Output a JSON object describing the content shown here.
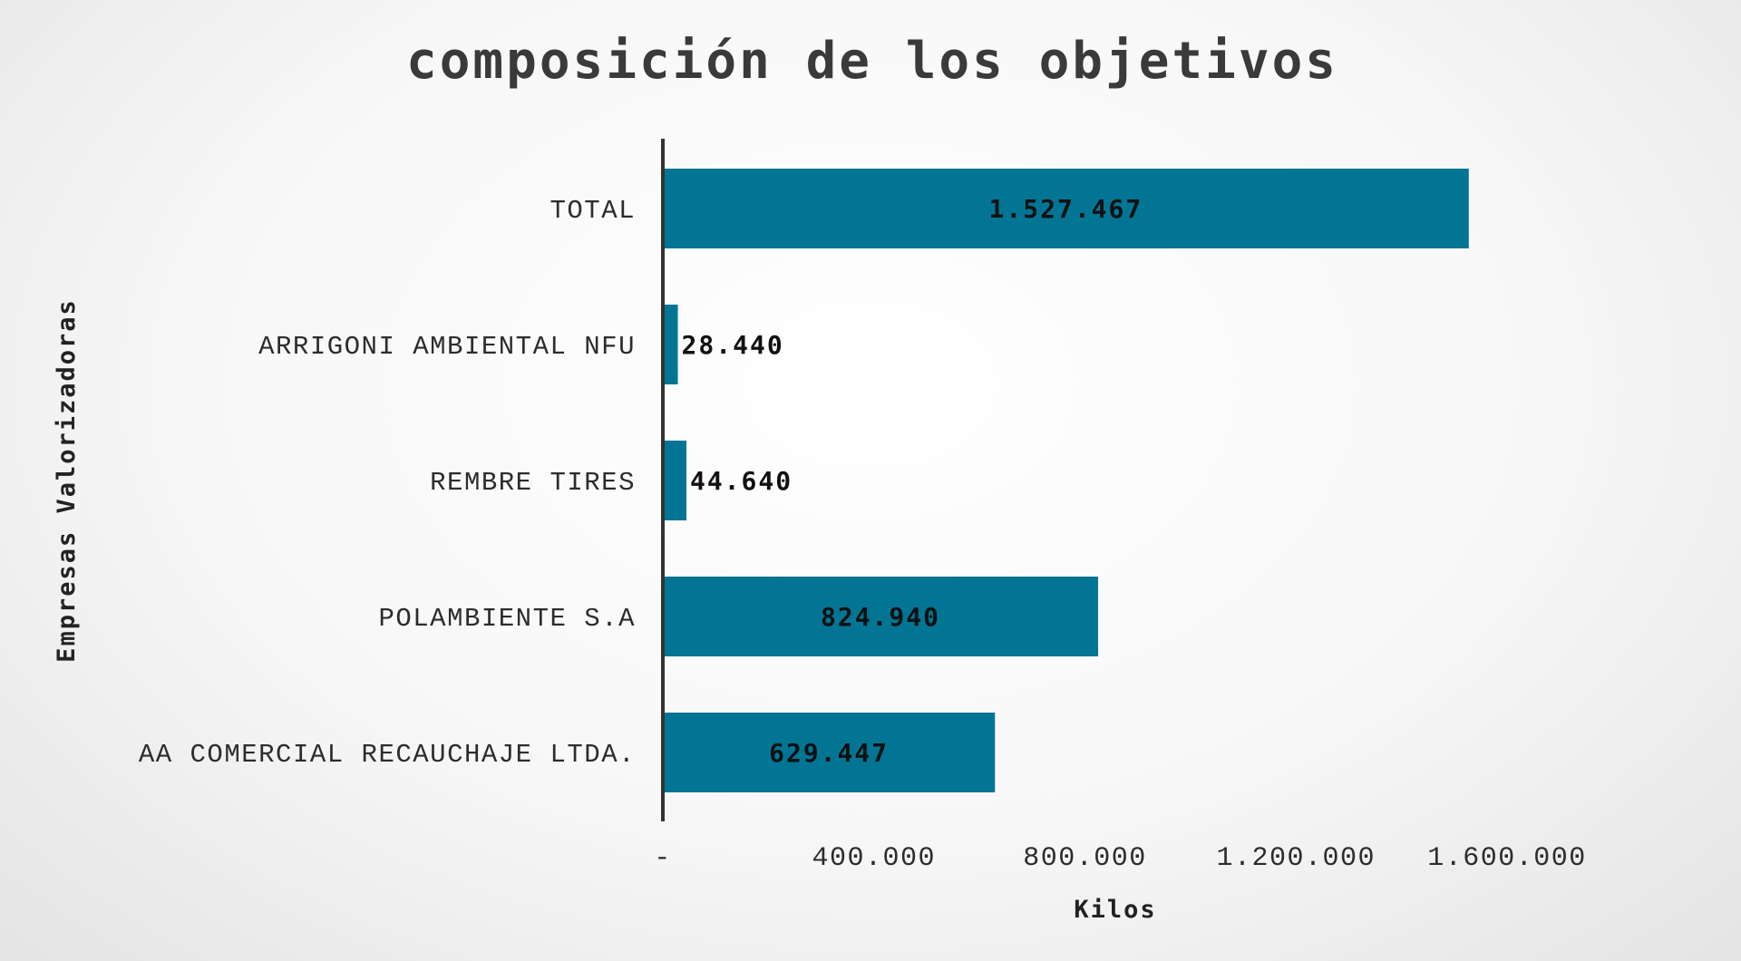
{
  "chart_data": {
    "type": "bar",
    "orientation": "horizontal",
    "title": "composición de los objetivos",
    "xlabel": "Kilos",
    "ylabel": "Empresas Valorizadoras",
    "categories": [
      "TOTAL",
      "ARRIGONI AMBIENTAL NFU",
      "REMBRE TIRES",
      "POLAMBIENTE S.A",
      "AA COMERCIAL RECAUCHAJE LTDA."
    ],
    "values": [
      1527467,
      28440,
      44640,
      824940,
      629447
    ],
    "data_labels": [
      "1.527.467",
      "28.440",
      "44.640",
      "824.940",
      "629.447"
    ],
    "xlim": [
      0,
      1600000
    ],
    "x_ticks": [
      0,
      400000,
      800000,
      1200000,
      1600000
    ],
    "x_tick_labels": [
      "-",
      "400.000",
      "800.000",
      "1.200.000",
      "1.600.000"
    ],
    "bar_color": "#037594",
    "grid": false
  }
}
